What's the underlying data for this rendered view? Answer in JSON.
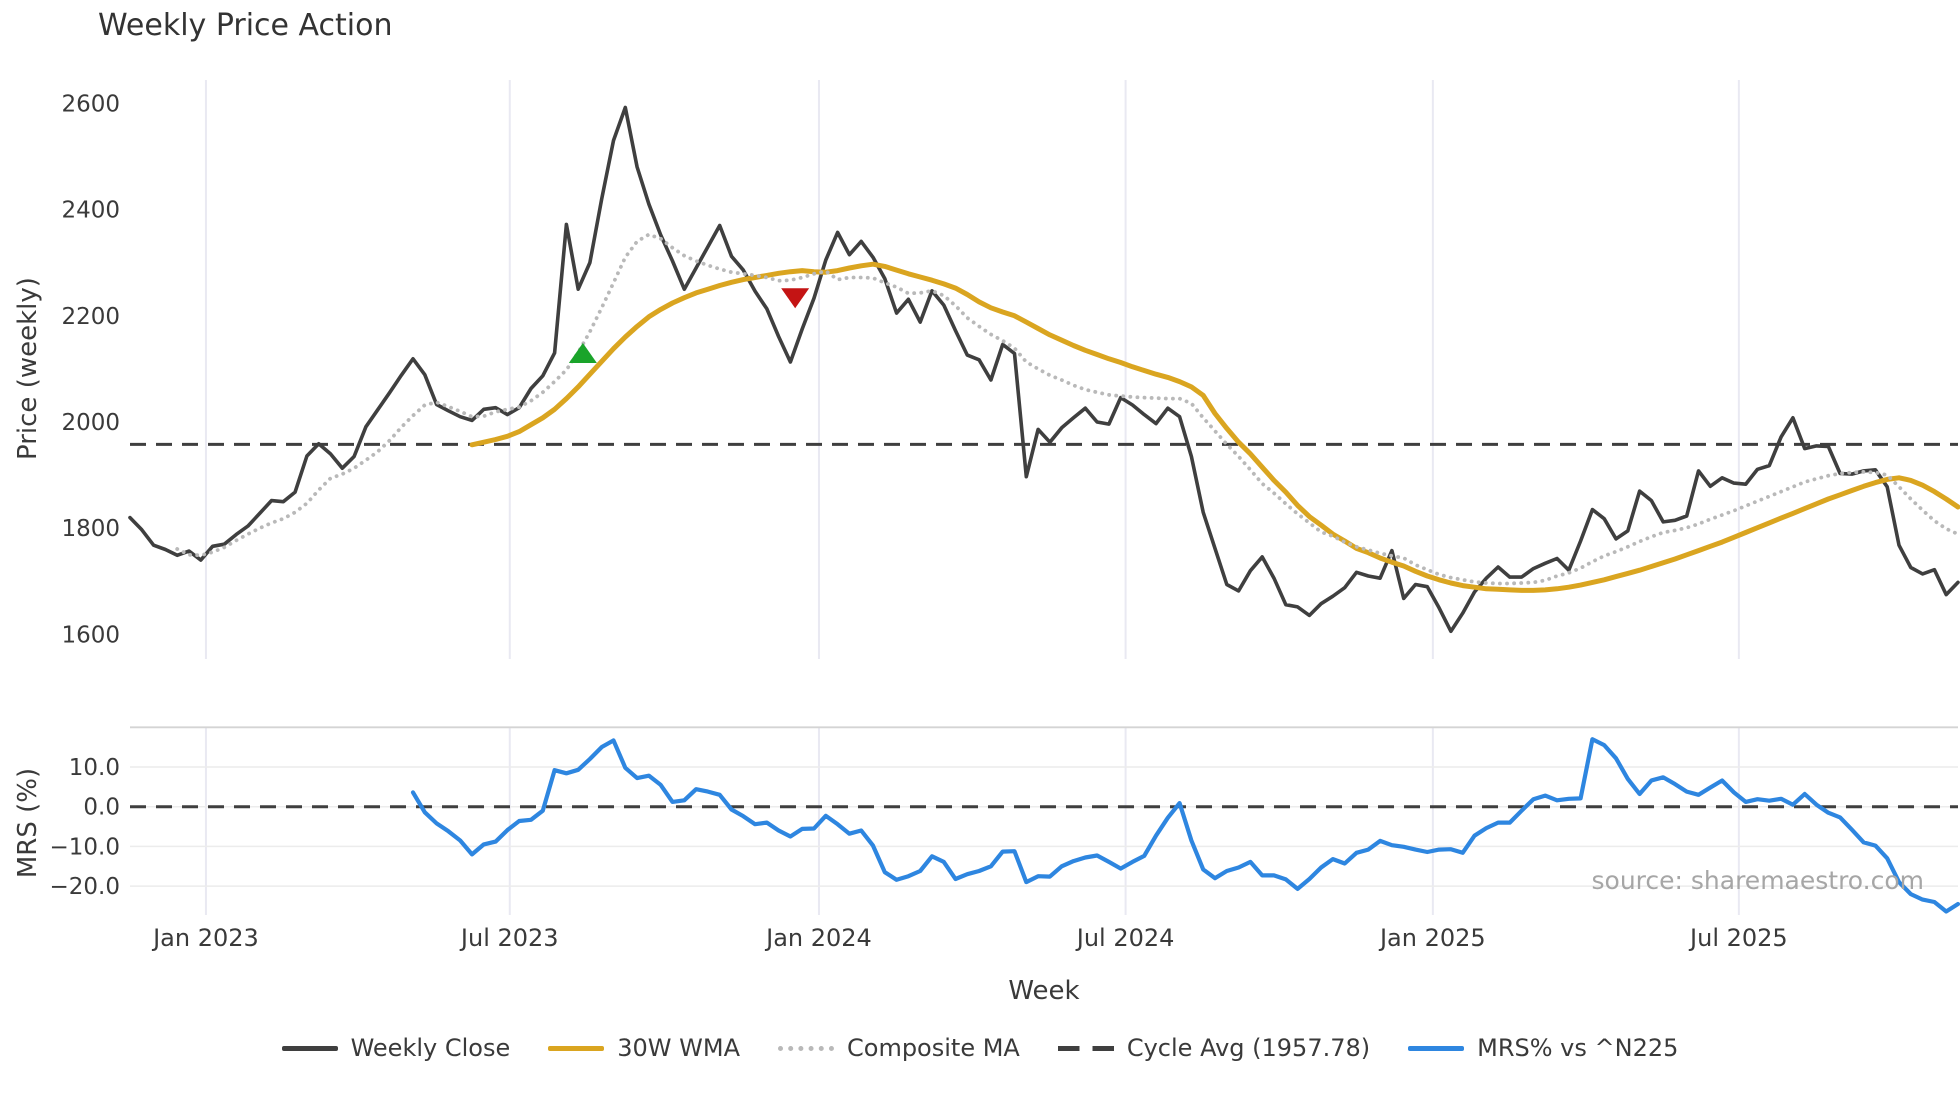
{
  "title": "Weekly Price Action",
  "colors": {
    "close": "#3f3f3f",
    "wma": "#daa520",
    "composite": "#b9b9b9",
    "cycle_dash": "#3f3f3f",
    "mrs": "#2e86e0",
    "marker_up": "#1aa42a",
    "marker_down": "#c41414",
    "grid_vertical": "#e9e9f2",
    "grid_horizontal": "#ececec",
    "panel_border": "#d4d4d4",
    "text": "#3a3a3a",
    "source_text": "#a6a6a6"
  },
  "price_panel": {
    "ylabel": "Price (weekly)",
    "yticks": [
      {
        "label": "2600",
        "value": 2600
      },
      {
        "label": "2400",
        "value": 2400
      },
      {
        "label": "2200",
        "value": 2200
      },
      {
        "label": "2000",
        "value": 2000
      },
      {
        "label": "1800",
        "value": 1800
      },
      {
        "label": "1600",
        "value": 1600
      }
    ]
  },
  "mrs_panel": {
    "ylabel": "MRS (%)",
    "yticks": [
      {
        "label": "10.0",
        "value": 10
      },
      {
        "label": "0.0",
        "value": 0
      },
      {
        "label": "−10.0",
        "value": -10
      },
      {
        "label": "−20.0",
        "value": -20
      }
    ],
    "source_note": "source: sharemaestro.com"
  },
  "xaxis": {
    "label": "Week",
    "ticks": [
      {
        "label": "Jan 2023",
        "week": 6.44
      },
      {
        "label": "Jul 2023",
        "week": 32.2
      },
      {
        "label": "Jan 2024",
        "week": 58.42
      },
      {
        "label": "Jul 2024",
        "week": 84.42
      },
      {
        "label": "Jan 2025",
        "week": 110.47
      },
      {
        "label": "Jul 2025",
        "week": 136.42
      }
    ]
  },
  "legend": {
    "items": [
      {
        "label": "Weekly Close",
        "style": "solid-dark"
      },
      {
        "label": "30W WMA",
        "style": "solid-gold"
      },
      {
        "label": "Composite MA",
        "style": "dotted-gray"
      },
      {
        "label": "Cycle Avg (1957.78)",
        "style": "dashed-dark"
      },
      {
        "label": "MRS% vs ^N225",
        "style": "solid-blue"
      }
    ]
  },
  "chart_data": {
    "type": "line",
    "x_unit": "week_index",
    "weeks_total": 156,
    "price_ylim": [
      1557,
      2641
    ],
    "mrs_ylim": [
      -28,
      20.1
    ],
    "reference_lines": [
      {
        "name": "Cycle Avg",
        "panel": "price",
        "value": 1957.78,
        "style": "dashed"
      },
      {
        "name": "Zero",
        "panel": "mrs",
        "value": 0.0,
        "style": "dashed"
      }
    ],
    "markers": [
      {
        "type": "triangle-up",
        "color": "#1aa42a",
        "week": 38.4,
        "price": 2130
      },
      {
        "type": "triangle-down",
        "color": "#c41414",
        "week": 56.4,
        "price": 2233
      }
    ],
    "series": [
      {
        "name": "Weekly Close",
        "panel": "price",
        "style": "solid",
        "start_week": 0,
        "values": [
          1820,
          1797,
          1768,
          1760,
          1749,
          1757,
          1740,
          1766,
          1770,
          1788,
          1804,
          1828,
          1852,
          1850,
          1868,
          1936,
          1959,
          1940,
          1913,
          1935,
          1991,
          2023,
          2055,
          2088,
          2119,
          2089,
          2033,
          2021,
          2010,
          2003,
          2024,
          2027,
          2014,
          2027,
          2063,
          2087,
          2130,
          2372,
          2250,
          2300,
          2420,
          2530,
          2592,
          2480,
          2410,
          2352,
          2303,
          2250,
          2290,
          2330,
          2370,
          2312,
          2286,
          2246,
          2213,
          2161,
          2113,
          2175,
          2233,
          2305,
          2357,
          2315,
          2340,
          2310,
          2270,
          2205,
          2231,
          2188,
          2247,
          2220,
          2172,
          2126,
          2117,
          2079,
          2146,
          2129,
          1897,
          1986,
          1962,
          1989,
          2008,
          2026,
          2000,
          1996,
          2046,
          2032,
          2014,
          1997,
          2026,
          2010,
          1935,
          1830,
          1762,
          1694,
          1682,
          1720,
          1746,
          1706,
          1656,
          1652,
          1636,
          1658,
          1672,
          1688,
          1717,
          1710,
          1706,
          1758,
          1668,
          1694,
          1690,
          1650,
          1606,
          1640,
          1680,
          1706,
          1727,
          1708,
          1708,
          1724,
          1734,
          1743,
          1721,
          1776,
          1835,
          1818,
          1780,
          1795,
          1870,
          1852,
          1812,
          1815,
          1823,
          1908,
          1879,
          1895,
          1885,
          1883,
          1911,
          1918,
          1972,
          2008,
          1950,
          1955,
          1954,
          1903,
          1902,
          1908,
          1910,
          1878,
          1768,
          1726,
          1714,
          1722,
          1675,
          1698
        ]
      },
      {
        "name": "30W WMA",
        "panel": "price",
        "style": "solid",
        "start_week": 29,
        "values": [
          1957,
          1962,
          1967,
          1973,
          1982,
          1995,
          2008,
          2024,
          2044,
          2066,
          2090,
          2114,
          2138,
          2160,
          2180,
          2198,
          2212,
          2224,
          2234,
          2243,
          2250,
          2257,
          2263,
          2268,
          2272,
          2276,
          2280,
          2283,
          2285,
          2283,
          2282,
          2285,
          2290,
          2294,
          2297,
          2293,
          2286,
          2279,
          2273,
          2267,
          2260,
          2252,
          2240,
          2226,
          2215,
          2207,
          2200,
          2188,
          2176,
          2164,
          2154,
          2144,
          2135,
          2127,
          2119,
          2112,
          2104,
          2097,
          2090,
          2084,
          2076,
          2066,
          2050,
          2016,
          1988,
          1962,
          1940,
          1915,
          1890,
          1868,
          1843,
          1822,
          1806,
          1789,
          1776,
          1762,
          1754,
          1744,
          1736,
          1729,
          1719,
          1710,
          1703,
          1697,
          1692,
          1689,
          1686,
          1685,
          1684,
          1683,
          1683,
          1684,
          1686,
          1689,
          1693,
          1698,
          1703,
          1709,
          1715,
          1721,
          1728,
          1735,
          1742,
          1750,
          1758,
          1766,
          1774,
          1783,
          1792,
          1801,
          1810,
          1819,
          1828,
          1837,
          1846,
          1855,
          1863,
          1871,
          1879,
          1886,
          1892,
          1895,
          1890,
          1881,
          1869,
          1855,
          1840
        ]
      },
      {
        "name": "Composite MA",
        "panel": "price",
        "style": "dotted",
        "start_week": 4,
        "values": [
          1761,
          1750,
          1749,
          1755,
          1764,
          1777,
          1789,
          1800,
          1810,
          1818,
          1830,
          1847,
          1872,
          1894,
          1902,
          1913,
          1928,
          1944,
          1965,
          1990,
          2012,
          2032,
          2037,
          2029,
          2020,
          2010,
          2011,
          2019,
          2024,
          2028,
          2040,
          2056,
          2076,
          2098,
          2131,
          2170,
          2215,
          2262,
          2310,
          2340,
          2353,
          2345,
          2328,
          2313,
          2303,
          2295,
          2288,
          2282,
          2279,
          2276,
          2272,
          2266,
          2267,
          2272,
          2279,
          2284,
          2268,
          2272,
          2272,
          2271,
          2262,
          2254,
          2242,
          2243,
          2247,
          2238,
          2219,
          2196,
          2180,
          2165,
          2153,
          2139,
          2113,
          2100,
          2088,
          2079,
          2069,
          2061,
          2056,
          2051,
          2049,
          2047,
          2046,
          2045,
          2044,
          2044,
          2035,
          2008,
          1983,
          1958,
          1935,
          1910,
          1884,
          1866,
          1846,
          1827,
          1810,
          1793,
          1785,
          1774,
          1765,
          1759,
          1753,
          1748,
          1744,
          1731,
          1722,
          1713,
          1707,
          1703,
          1699,
          1697,
          1696,
          1696,
          1697,
          1698,
          1702,
          1710,
          1716,
          1725,
          1737,
          1748,
          1756,
          1765,
          1775,
          1784,
          1792,
          1796,
          1801,
          1808,
          1817,
          1825,
          1833,
          1842,
          1851,
          1860,
          1869,
          1878,
          1887,
          1893,
          1899,
          1903,
          1905,
          1906,
          1905,
          1900,
          1878,
          1855,
          1834,
          1814,
          1799,
          1789
        ]
      },
      {
        "name": "MRS% vs ^N225",
        "panel": "mrs",
        "style": "solid",
        "start_week": 24,
        "values": [
          3.6,
          -1.4,
          -4.2,
          -6.2,
          -8.5,
          -12.0,
          -9.5,
          -8.8,
          -5.9,
          -3.6,
          -3.3,
          -1.0,
          9.2,
          8.4,
          9.3,
          12.0,
          15.0,
          16.7,
          9.8,
          7.2,
          7.8,
          5.5,
          1.2,
          1.6,
          4.4,
          3.8,
          3.0,
          -0.7,
          -2.4,
          -4.4,
          -4.0,
          -6.0,
          -7.5,
          -5.6,
          -5.5,
          -2.3,
          -4.4,
          -6.8,
          -6.0,
          -9.8,
          -16.5,
          -18.4,
          -17.5,
          -16.2,
          -12.5,
          -13.9,
          -18.2,
          -17.0,
          -16.2,
          -15.0,
          -11.3,
          -11.2,
          -19.0,
          -17.5,
          -17.6,
          -15.0,
          -13.7,
          -12.8,
          -12.3,
          -13.9,
          -15.6,
          -13.9,
          -12.4,
          -7.3,
          -2.8,
          0.9,
          -8.5,
          -15.8,
          -18.0,
          -16.2,
          -15.3,
          -13.9,
          -17.3,
          -17.3,
          -18.3,
          -20.7,
          -18.2,
          -15.3,
          -13.2,
          -14.3,
          -11.6,
          -10.8,
          -8.6,
          -9.7,
          -10.1,
          -10.8,
          -11.4,
          -10.8,
          -10.7,
          -11.6,
          -7.3,
          -5.4,
          -4.0,
          -4.0,
          -1.0,
          1.9,
          2.8,
          1.6,
          2.0,
          2.1,
          17.0,
          15.5,
          12.2,
          7.0,
          3.2,
          6.6,
          7.4,
          5.7,
          3.8,
          3.0,
          4.8,
          6.6,
          3.6,
          1.2,
          1.9,
          1.5,
          2.0,
          0.5,
          3.2,
          0.5,
          -1.5,
          -2.7,
          -5.8,
          -9.0,
          -9.8,
          -13.0,
          -19.0,
          -22.0,
          -23.4,
          -24.0,
          -26.4,
          -24.5
        ]
      }
    ]
  }
}
